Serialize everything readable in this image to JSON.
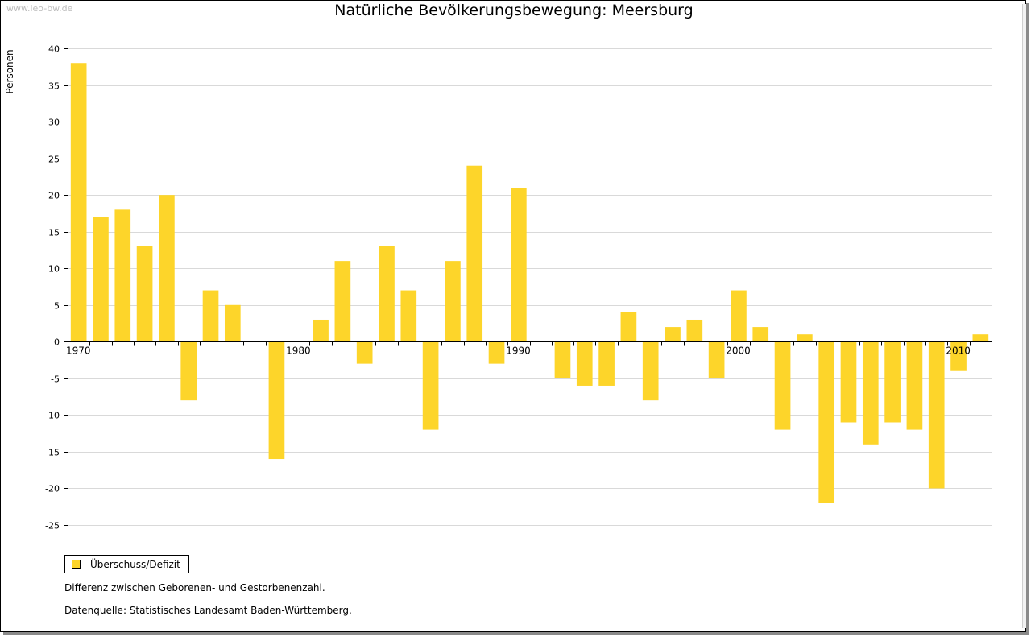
{
  "watermark": "www.leo-bw.de",
  "colors": {
    "bar": "#FDD52A",
    "grid": "#d9d9d9",
    "axis": "#000000"
  },
  "chart_data": {
    "type": "bar",
    "title": "Natürliche Bevölkerungsbewegung: Meersburg",
    "xlabel": "",
    "ylabel": "Personen",
    "ylim": [
      -25,
      40
    ],
    "yticks": [
      40,
      35,
      30,
      25,
      20,
      15,
      10,
      5,
      0,
      -5,
      -10,
      -15,
      -20,
      -25
    ],
    "xtick_labels": [
      "1970",
      "1980",
      "1990",
      "2000",
      "2010"
    ],
    "grid": true,
    "legend_position": "bottom-left",
    "categories": [
      1970,
      1971,
      1972,
      1973,
      1974,
      1975,
      1976,
      1977,
      1978,
      1979,
      1980,
      1981,
      1982,
      1983,
      1984,
      1985,
      1986,
      1987,
      1988,
      1989,
      1990,
      1991,
      1992,
      1993,
      1994,
      1995,
      1996,
      1997,
      1998,
      1999,
      2000,
      2001,
      2002,
      2003,
      2004,
      2005,
      2006,
      2007,
      2008,
      2009,
      2010,
      2011
    ],
    "series": [
      {
        "name": "Überschuss/Defizit",
        "values": [
          38,
          17,
          18,
          13,
          20,
          -8,
          7,
          5,
          0,
          -16,
          0,
          3,
          11,
          -3,
          13,
          7,
          -12,
          11,
          24,
          -3,
          21,
          0,
          -5,
          -6,
          -6,
          4,
          -8,
          2,
          3,
          -5,
          7,
          2,
          -12,
          1,
          -22,
          -11,
          -14,
          -11,
          -12,
          -20,
          -4,
          1
        ]
      }
    ]
  },
  "legend": {
    "label": "Überschuss/Defizit"
  },
  "notes": {
    "line1": "Differenz zwischen Geborenen- und Gestorbenenzahl.",
    "line2": "Datenquelle: Statistisches Landesamt Baden-Württemberg."
  }
}
